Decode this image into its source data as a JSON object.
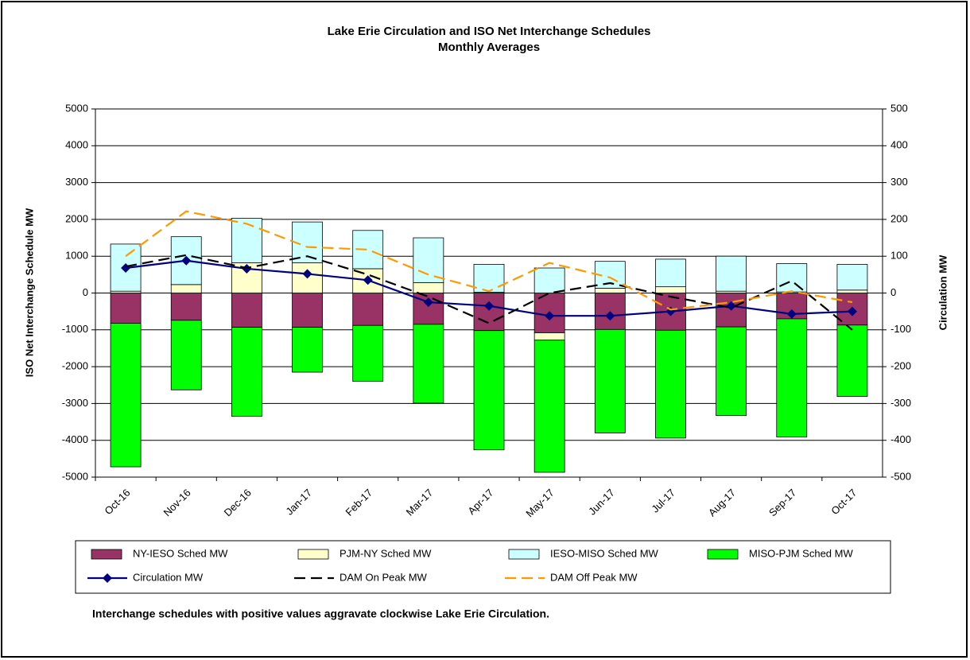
{
  "chart_data": {
    "type": "bar_line_combo",
    "title": "Lake Erie Circulation and ISO Net Interchange Schedules",
    "subtitle": "Monthly Averages",
    "y_label": "ISO Net Interchange  Schedule MW",
    "y2_label": "Circulation MW",
    "note": "Interchange schedules with positive values aggravate clockwise Lake Erie Circulation.",
    "categories": [
      "Oct-16",
      "Nov-16",
      "Dec-16",
      "Jan-17",
      "Feb-17",
      "Mar-17",
      "Apr-17",
      "May-17",
      "Jun-17",
      "Jul-17",
      "Aug-17",
      "Sep-17",
      "Oct-17"
    ],
    "ylim": [
      -5000,
      5000
    ],
    "yticks": [
      -5000,
      -4000,
      -3000,
      -2000,
      -1000,
      0,
      1000,
      2000,
      3000,
      4000,
      5000
    ],
    "y2lim": [
      -500,
      500
    ],
    "y2ticks": [
      -500,
      -400,
      -300,
      -200,
      -100,
      0,
      100,
      200,
      300,
      400,
      500
    ],
    "grid": true,
    "series": [
      {
        "name": "NY-IESO Sched MW",
        "type": "bar",
        "color": "#993366",
        "values": [
          -820,
          -740,
          -930,
          -930,
          -880,
          -850,
          -1020,
          -1080,
          -990,
          -1010,
          -920,
          -700,
          -870
        ]
      },
      {
        "name": "PJM-NY Sched MW",
        "type": "bar",
        "color": "#ffffcc",
        "values": [
          50,
          230,
          820,
          820,
          660,
          280,
          20,
          -200,
          130,
          170,
          50,
          30,
          80
        ]
      },
      {
        "name": "IESO-MISO Sched MW",
        "type": "bar",
        "color": "#ccffff",
        "values": [
          1280,
          1300,
          1210,
          1110,
          1040,
          1220,
          760,
          680,
          730,
          750,
          950,
          770,
          700
        ]
      },
      {
        "name": "MISO-PJM Sched MW",
        "type": "bar",
        "color": "#00ff00",
        "values": [
          -3900,
          -1890,
          -2420,
          -1220,
          -1520,
          -2140,
          -3240,
          -3590,
          -2810,
          -2930,
          -2410,
          -3210,
          -1940
        ]
      },
      {
        "name": "Circulation MW",
        "type": "line",
        "axis": "y2",
        "color": "#000080",
        "marker": "diamond",
        "dash": false,
        "values": [
          68,
          88,
          66,
          52,
          35,
          -25,
          -35,
          -62,
          -62,
          -50,
          -35,
          -57,
          -50
        ]
      },
      {
        "name": "DAM On Peak MW",
        "type": "line",
        "axis": "y2",
        "color": "#000000",
        "dash": true,
        "values": [
          72,
          103,
          68,
          100,
          50,
          -10,
          -82,
          0,
          27,
          -10,
          -40,
          33,
          -100
        ]
      },
      {
        "name": "DAM Off Peak MW",
        "type": "line",
        "axis": "y2",
        "color": "#ff9900",
        "dash": true,
        "values": [
          100,
          222,
          188,
          125,
          118,
          50,
          5,
          82,
          42,
          -45,
          -25,
          5,
          -25
        ]
      }
    ]
  }
}
